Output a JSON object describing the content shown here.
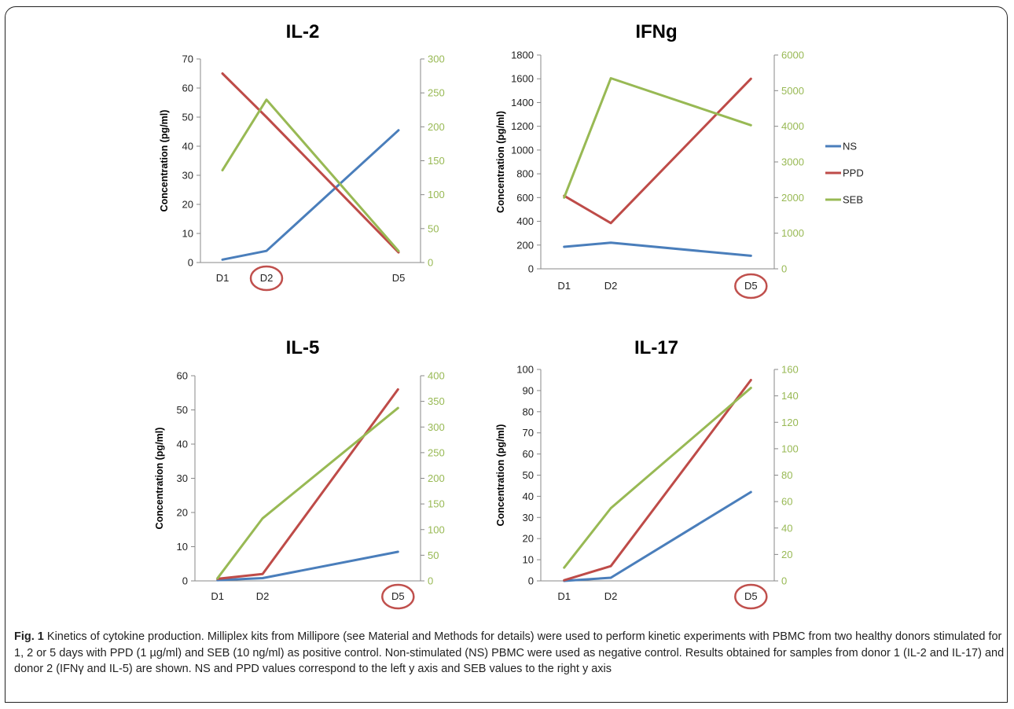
{
  "colors": {
    "NS": "#4a7ebb",
    "PPD": "#be4b48",
    "SEB": "#98b954",
    "axis": "#888888",
    "secondary_tick": "#98b954"
  },
  "legend": {
    "placement": "right-of-IFNg",
    "entries": [
      "NS",
      "PPD",
      "SEB"
    ]
  },
  "chart_data": [
    {
      "type": "line",
      "title": "IL-2",
      "categories": [
        "D1",
        "D2",
        "D5"
      ],
      "x": [
        1,
        2,
        5
      ],
      "circled_category": "D2",
      "ylabel": "Concentration (pg/ml)",
      "ylim": [
        0,
        70
      ],
      "yticks": [
        0,
        10,
        20,
        30,
        40,
        50,
        60,
        70
      ],
      "y2lim": [
        0,
        300
      ],
      "y2ticks": [
        0,
        50,
        100,
        150,
        200,
        250,
        300
      ],
      "series": [
        {
          "name": "NS",
          "axis": "left",
          "values": [
            1,
            4,
            45.5
          ]
        },
        {
          "name": "PPD",
          "axis": "left",
          "values": [
            65,
            50,
            3.5
          ]
        },
        {
          "name": "SEB",
          "axis": "right",
          "values": [
            136,
            240,
            17
          ]
        }
      ]
    },
    {
      "type": "line",
      "title": "IFNg",
      "categories": [
        "D1",
        "D2",
        "D5"
      ],
      "x": [
        1,
        2,
        5
      ],
      "circled_category": "D5",
      "ylabel": "Concentration (pg/ml)",
      "ylim": [
        0,
        1800
      ],
      "yticks": [
        0,
        200,
        400,
        600,
        800,
        1000,
        1200,
        1400,
        1600,
        1800
      ],
      "y2lim": [
        0,
        6000
      ],
      "y2ticks": [
        0,
        1000,
        2000,
        3000,
        4000,
        5000,
        6000
      ],
      "series": [
        {
          "name": "NS",
          "axis": "left",
          "values": [
            185,
            220,
            110
          ]
        },
        {
          "name": "PPD",
          "axis": "left",
          "values": [
            615,
            385,
            1600
          ]
        },
        {
          "name": "SEB",
          "axis": "right",
          "values": [
            2000,
            5350,
            4030
          ]
        }
      ]
    },
    {
      "type": "line",
      "title": "IL-5",
      "categories": [
        "D1",
        "D2",
        "D5"
      ],
      "x": [
        1,
        2,
        5
      ],
      "circled_category": "D5",
      "ylabel": "Concentration (pg/ml)",
      "ylim": [
        0,
        60
      ],
      "yticks": [
        0,
        10,
        20,
        30,
        40,
        50,
        60
      ],
      "y2lim": [
        0,
        400
      ],
      "y2ticks": [
        0,
        50,
        100,
        150,
        200,
        250,
        300,
        350,
        400
      ],
      "series": [
        {
          "name": "NS",
          "axis": "left",
          "values": [
            0.2,
            0.8,
            8.5
          ]
        },
        {
          "name": "PPD",
          "axis": "left",
          "values": [
            0.6,
            2,
            56
          ]
        },
        {
          "name": "SEB",
          "axis": "right",
          "values": [
            5,
            122,
            337
          ]
        }
      ]
    },
    {
      "type": "line",
      "title": "IL-17",
      "categories": [
        "D1",
        "D2",
        "D5"
      ],
      "x": [
        1,
        2,
        5
      ],
      "circled_category": "D5",
      "ylabel": "Concentration (pg/ml)",
      "ylim": [
        0,
        100
      ],
      "yticks": [
        0,
        10,
        20,
        30,
        40,
        50,
        60,
        70,
        80,
        90,
        100
      ],
      "y2lim": [
        0,
        160
      ],
      "y2ticks": [
        0,
        20,
        40,
        60,
        80,
        100,
        120,
        140,
        160
      ],
      "series": [
        {
          "name": "NS",
          "axis": "left",
          "values": [
            0,
            1.5,
            42
          ]
        },
        {
          "name": "PPD",
          "axis": "left",
          "values": [
            0.3,
            7,
            95
          ]
        },
        {
          "name": "SEB",
          "axis": "right",
          "values": [
            10,
            55,
            146
          ]
        }
      ]
    }
  ],
  "caption": {
    "label": "Fig. 1",
    "text": " Kinetics of cytokine production. Milliplex kits from Millipore (see Material and Methods for details) were used to perform kinetic experiments with PBMC from two healthy donors stimulated for 1, 2 or 5 days with PPD (1 µg/ml) and SEB (10 ng/ml) as positive control. Non-stimulated (NS) PBMC were used as negative control. Results obtained for samples from donor 1 (IL-2 and IL-17) and donor 2 (IFNγ and IL-5) are shown. NS and PPD values correspond to the left y axis and SEB values to the right y axis"
  }
}
